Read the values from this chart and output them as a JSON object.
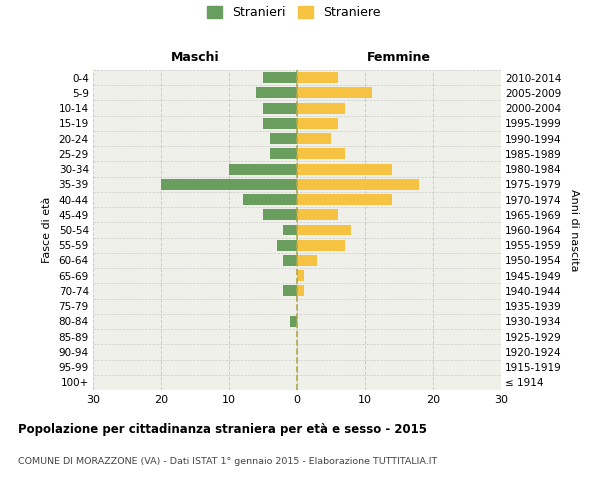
{
  "age_groups": [
    "100+",
    "95-99",
    "90-94",
    "85-89",
    "80-84",
    "75-79",
    "70-74",
    "65-69",
    "60-64",
    "55-59",
    "50-54",
    "45-49",
    "40-44",
    "35-39",
    "30-34",
    "25-29",
    "20-24",
    "15-19",
    "10-14",
    "5-9",
    "0-4"
  ],
  "birth_years": [
    "≤ 1914",
    "1915-1919",
    "1920-1924",
    "1925-1929",
    "1930-1934",
    "1935-1939",
    "1940-1944",
    "1945-1949",
    "1950-1954",
    "1955-1959",
    "1960-1964",
    "1965-1969",
    "1970-1974",
    "1975-1979",
    "1980-1984",
    "1985-1989",
    "1990-1994",
    "1995-1999",
    "2000-2004",
    "2005-2009",
    "2010-2014"
  ],
  "males": [
    0,
    0,
    0,
    0,
    1,
    0,
    2,
    0,
    2,
    3,
    2,
    5,
    8,
    20,
    10,
    4,
    4,
    5,
    5,
    6,
    5
  ],
  "females": [
    0,
    0,
    0,
    0,
    0,
    0,
    1,
    1,
    3,
    7,
    8,
    6,
    14,
    18,
    14,
    7,
    5,
    6,
    7,
    11,
    6
  ],
  "male_color": "#6a9e5f",
  "female_color": "#f5c242",
  "center_line_color": "#b0a848",
  "grid_color": "#cccccc",
  "bg_color": "#f0f0eb",
  "title": "Popolazione per cittadinanza straniera per età e sesso - 2015",
  "subtitle": "COMUNE DI MORAZZONE (VA) - Dati ISTAT 1° gennaio 2015 - Elaborazione TUTTITALIA.IT",
  "xlabel_left": "Maschi",
  "xlabel_right": "Femmine",
  "ylabel_left": "Fasce di età",
  "ylabel_right": "Anni di nascita",
  "legend_stranieri": "Stranieri",
  "legend_straniere": "Straniere",
  "xlim": 30
}
